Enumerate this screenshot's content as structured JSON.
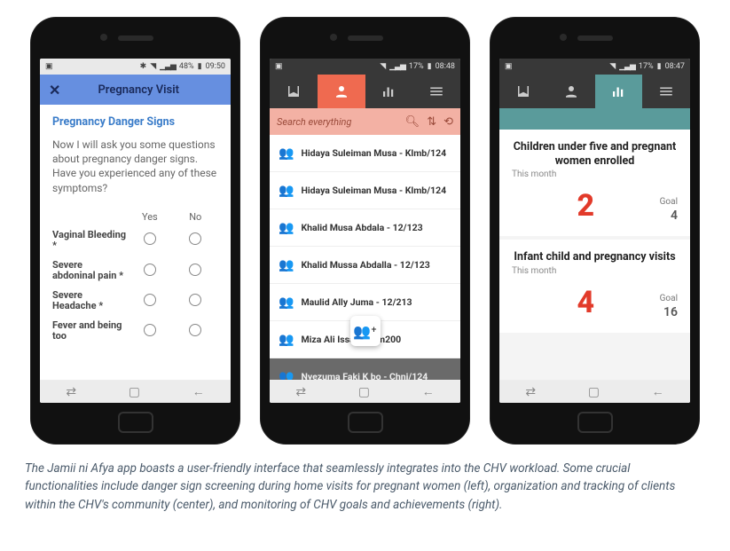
{
  "phone1": {
    "status": {
      "battery": "48%",
      "time": "09:50",
      "haswifi": true,
      "bt": true
    },
    "header": {
      "title": "Pregnancy Visit"
    },
    "section_title": "Pregnancy Danger Signs",
    "intro": "Now I will ask you some questions about pregnancy danger signs. Have you experienced any of these symptoms?",
    "columns": {
      "yes": "Yes",
      "no": "No"
    },
    "questions": [
      {
        "label": "Vaginal Bleeding *"
      },
      {
        "label": "Severe abdoninal pain *"
      },
      {
        "label": "Severe Headache *"
      },
      {
        "label": "Fever and being too"
      }
    ]
  },
  "phone2": {
    "status": {
      "battery": "17%",
      "time": "08:48"
    },
    "search_placeholder": "Search everything",
    "active_tab": 1,
    "contacts": [
      {
        "name": "Hidaya Suleiman Musa - Klmb/124"
      },
      {
        "name": "Hidaya Suleiman Musa - Klmb/124"
      },
      {
        "name": "Khalid Musa Abdala - 12/123"
      },
      {
        "name": "Khalid Mussa Abdalla - 12/123"
      },
      {
        "name": "Maulid Ally Juma - 12/213"
      },
      {
        "name": "Miza Ali Issa - K/sm200"
      },
      {
        "name": "Nyezuma Faki K   bo - Chnj/124"
      }
    ]
  },
  "phone3": {
    "status": {
      "battery": "17%",
      "time": "08:47"
    },
    "active_tab": 2,
    "cards": [
      {
        "title": "Children under five and pregnant women enrolled",
        "sub": "This month",
        "value": "2",
        "goal_label": "Goal",
        "goal": "4"
      },
      {
        "title": "Infant child and pregnancy visits",
        "sub": "This month",
        "value": "4",
        "goal_label": "Goal",
        "goal": "16"
      }
    ]
  },
  "caption": {
    "text_lead": "The ",
    "app": "Jamii ni Afya",
    "text_rest": " app boasts a user-friendly interface that seamlessly integrates into the CHV workload. Some crucial functionalities include danger sign screening during home visits for pregnant women (left), organization and tracking of clients within the CHV's community (center), and monitoring of CHV goals and achievements (right)."
  },
  "colors": {
    "blue_header": "#668fe0",
    "orange_tab": "#ef6a50",
    "teal": "#5a9b9b",
    "search_bg": "#f3b1a4",
    "stat_red": "#e23a2a"
  }
}
